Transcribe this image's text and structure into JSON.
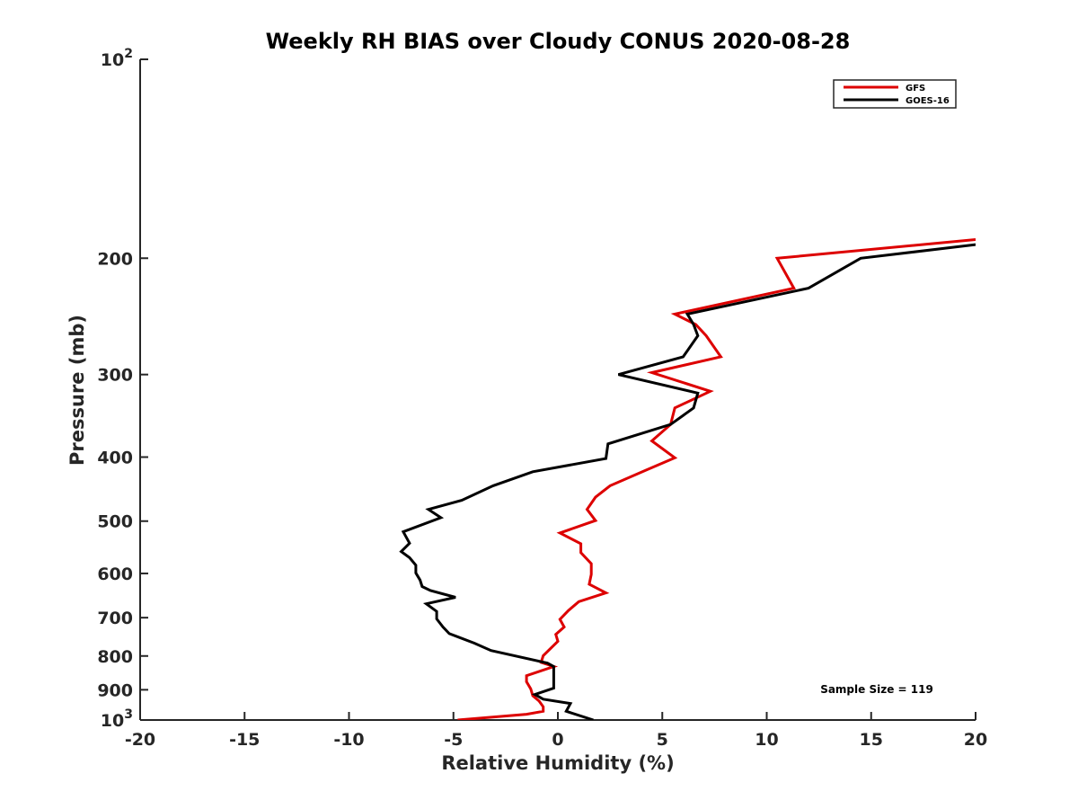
{
  "chart_data": {
    "type": "line",
    "title": "Weekly RH BIAS over Cloudy CONUS 2020-08-28",
    "xlabel": "Relative Humidity (%)",
    "ylabel": "Pressure (mb)",
    "xlim": [
      -20,
      20
    ],
    "ylim": [
      100,
      1000
    ],
    "y_scale": "log",
    "y_reversed": true,
    "grid": false,
    "legend_position": "top-right",
    "x_ticks": [
      -20,
      -15,
      -10,
      -5,
      0,
      5,
      10,
      15,
      20
    ],
    "x_tick_labels": [
      "-20",
      "-15",
      "-10",
      "-5",
      "0",
      "5",
      "10",
      "15",
      "20"
    ],
    "y_ticks": [
      100,
      200,
      300,
      400,
      500,
      600,
      700,
      800,
      900,
      1000
    ],
    "y_tick_labels": [
      "10^2",
      "200",
      "300",
      "400",
      "500",
      "600",
      "700",
      "800",
      "900",
      "10^3"
    ],
    "annotation": "Sample Size = 119",
    "series": [
      {
        "name": "GFS",
        "color": "#dd0000",
        "points": [
          [
            30,
            175
          ],
          [
            10.5,
            200
          ],
          [
            11.3,
            222
          ],
          [
            5.6,
            243
          ],
          [
            6.6,
            252
          ],
          [
            7.1,
            262
          ],
          [
            7.8,
            282
          ],
          [
            4.5,
            298
          ],
          [
            7.3,
            318
          ],
          [
            5.6,
            337
          ],
          [
            5.4,
            357
          ],
          [
            4.5,
            378
          ],
          [
            5.6,
            401
          ],
          [
            4.2,
            419
          ],
          [
            2.5,
            442
          ],
          [
            1.8,
            460
          ],
          [
            1.4,
            480
          ],
          [
            1.8,
            499
          ],
          [
            0.1,
            521
          ],
          [
            1.1,
            541
          ],
          [
            1.1,
            558
          ],
          [
            1.6,
            580
          ],
          [
            1.6,
            602
          ],
          [
            1.5,
            623
          ],
          [
            2.3,
            642
          ],
          [
            1.0,
            662
          ],
          [
            0.5,
            683
          ],
          [
            0.1,
            704
          ],
          [
            0.3,
            723
          ],
          [
            -0.1,
            742
          ],
          [
            0.0,
            760
          ],
          [
            -0.7,
            799
          ],
          [
            -0.8,
            818
          ],
          [
            -0.2,
            830
          ],
          [
            -1.5,
            857
          ],
          [
            -1.5,
            875
          ],
          [
            -1.3,
            897
          ],
          [
            -1.2,
            919
          ],
          [
            -0.9,
            936
          ],
          [
            -0.7,
            955
          ],
          [
            -0.7,
            970
          ],
          [
            -1.5,
            980
          ],
          [
            -4.8,
            1000
          ]
        ]
      },
      {
        "name": "GOES-16",
        "color": "#000000",
        "points": [
          [
            30,
            175
          ],
          [
            14.5,
            200
          ],
          [
            12,
            222
          ],
          [
            6.2,
            243
          ],
          [
            6.5,
            252
          ],
          [
            6.7,
            262
          ],
          [
            6.0,
            282
          ],
          [
            2.9,
            300
          ],
          [
            6.7,
            320
          ],
          [
            6.5,
            337
          ],
          [
            5.4,
            357
          ],
          [
            2.4,
            382
          ],
          [
            2.3,
            402
          ],
          [
            -1.2,
            421
          ],
          [
            -3.1,
            442
          ],
          [
            -4.6,
            465
          ],
          [
            -6.2,
            480
          ],
          [
            -5.6,
            494
          ],
          [
            -7.4,
            519
          ],
          [
            -7.1,
            540
          ],
          [
            -7.5,
            556
          ],
          [
            -7.1,
            568
          ],
          [
            -6.8,
            583
          ],
          [
            -6.8,
            599
          ],
          [
            -6.6,
            614
          ],
          [
            -6.5,
            628
          ],
          [
            -6.1,
            637
          ],
          [
            -4.9,
            652
          ],
          [
            -6.3,
            667
          ],
          [
            -5.8,
            685
          ],
          [
            -5.8,
            703
          ],
          [
            -5.5,
            723
          ],
          [
            -5.2,
            740
          ],
          [
            -4.0,
            765
          ],
          [
            -3.2,
            785
          ],
          [
            -0.5,
            820
          ],
          [
            -0.2,
            830
          ],
          [
            -0.2,
            855
          ],
          [
            -0.2,
            875
          ],
          [
            -0.2,
            895
          ],
          [
            -1.1,
            915
          ],
          [
            -0.7,
            930
          ],
          [
            0.6,
            944
          ],
          [
            0.4,
            970
          ],
          [
            1.7,
            1000
          ]
        ]
      }
    ]
  }
}
